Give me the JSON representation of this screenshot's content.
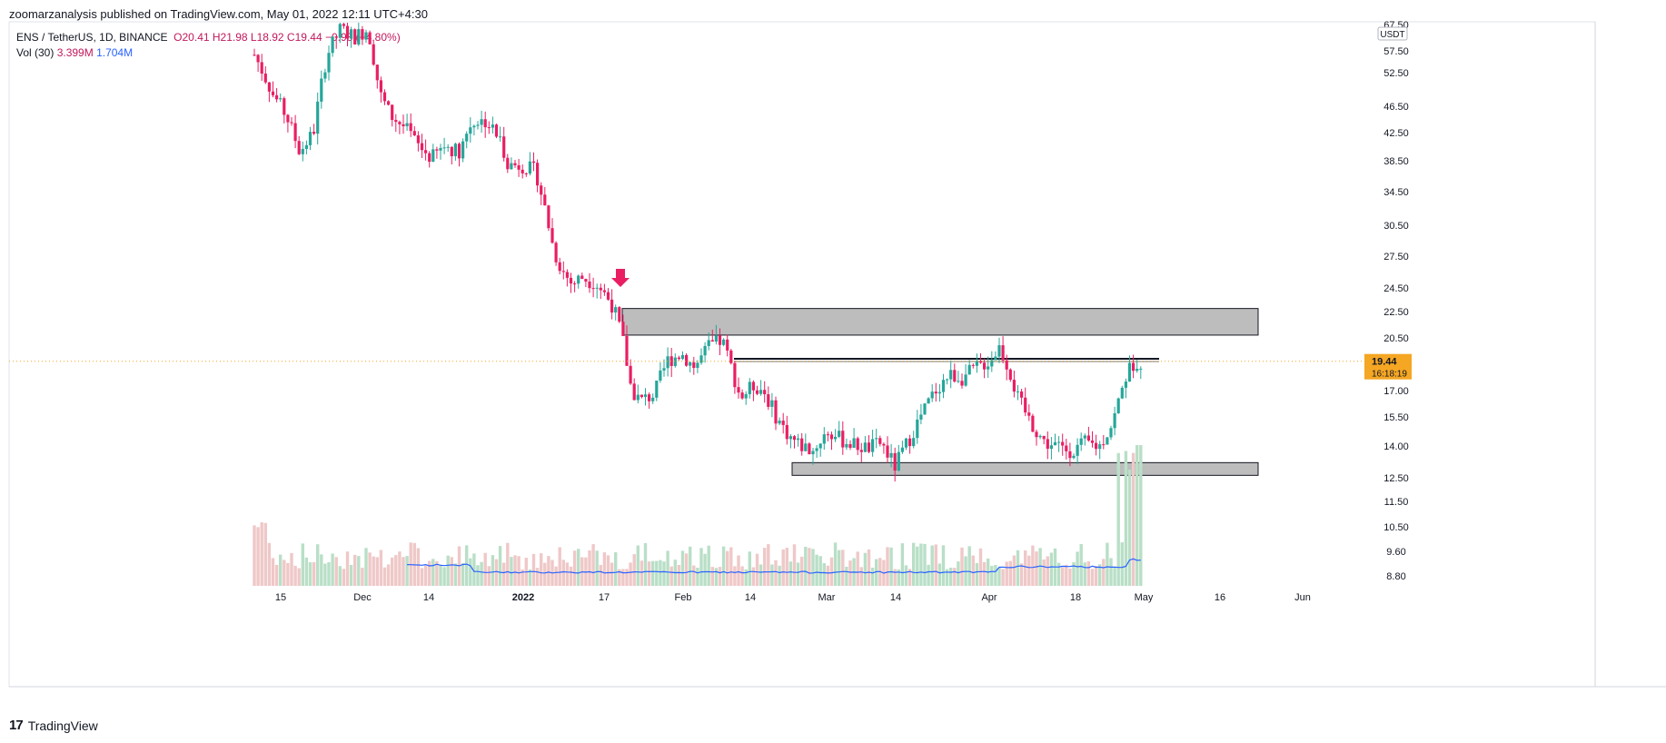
{
  "header": {
    "published": "zoomarzanalysis published on TradingView.com, May 01, 2022 12:11 UTC+4:30"
  },
  "legend": {
    "symbol": "ENS / TetherUS, 1D, BINANCE",
    "ohlc": "O20.41  H21.98  L18.92  C19.44  −0.98 (−4.80%)",
    "vol_label": "Vol (30)",
    "vol_a": "3.399M",
    "vol_b": "1.704M"
  },
  "footer": {
    "brand": "TradingView",
    "logo": "17"
  },
  "colors": {
    "up": "#26a69a",
    "down": "#ef5350",
    "up_body": "#26a69a",
    "down_body": "#e91e63",
    "vol_up": "#b9dfc7",
    "vol_down": "#efc8c8",
    "ma": "#2962ff",
    "zone": "#bdbdbd",
    "last_price": "#f5a623"
  },
  "price_axis": {
    "unit": "USDT",
    "ticks": [
      "67.50",
      "57.50",
      "52.50",
      "46.50",
      "42.50",
      "38.50",
      "34.50",
      "30.50",
      "27.50",
      "24.50",
      "22.50",
      "20.50",
      "17.00",
      "15.50",
      "14.00",
      "12.50",
      "11.50",
      "10.50",
      "9.60",
      "8.80"
    ],
    "last_price": "19.44",
    "countdown": "16:18:19"
  },
  "time_axis": {
    "ticks": [
      "15",
      "Dec",
      "14",
      "2022",
      "17",
      "Feb",
      "14",
      "Mar",
      "14",
      "Apr",
      "18",
      "May",
      "16",
      "Jun"
    ]
  },
  "chart_data": {
    "type": "candlestick",
    "symbol": "ENS / TetherUS",
    "interval": "1D",
    "exchange": "BINANCE",
    "scale": "log",
    "last": {
      "open": 20.41,
      "high": 21.98,
      "low": 18.92,
      "close": 19.44,
      "change": -0.98,
      "change_pct": -4.8
    },
    "volume": {
      "last": "3.399M",
      "ma30": "1.704M"
    },
    "zones": [
      {
        "name": "resistance",
        "low": 21.4,
        "high": 23.6
      },
      {
        "name": "support",
        "low": 12.8,
        "high": 13.3
      }
    ],
    "levels": [
      18.9
    ],
    "marker": "down-arrow",
    "ylim": [
      8.8,
      67.5
    ]
  }
}
